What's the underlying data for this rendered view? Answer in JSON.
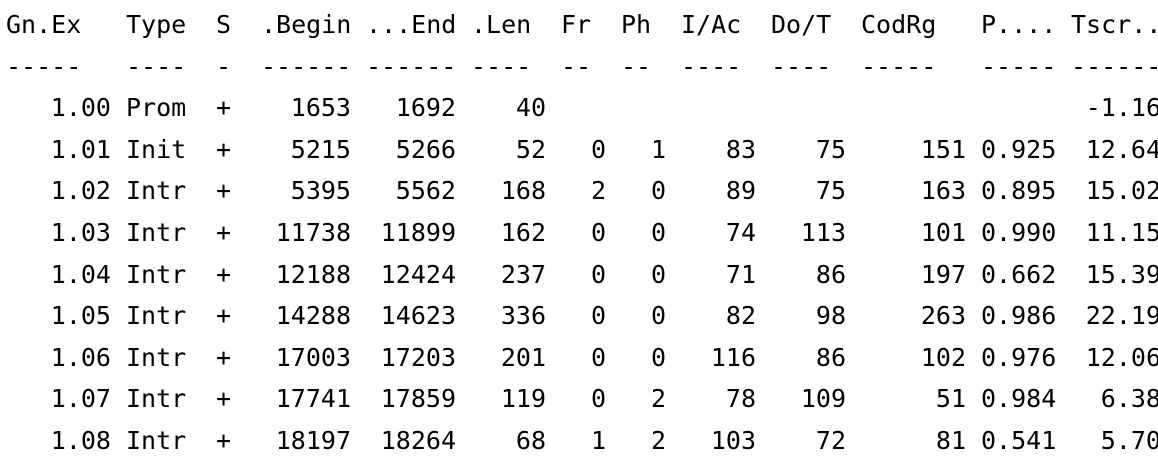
{
  "table": {
    "headers": [
      "Gn.Ex",
      "Type",
      "S",
      ".Begin",
      "...End",
      ".Len",
      "Fr",
      "Ph",
      "I/Ac",
      "Do/T",
      "CodRg",
      "P....",
      "Tscr.."
    ],
    "separators": [
      "-----",
      "----",
      "-",
      "------",
      "------",
      "----",
      "--",
      "--",
      "----",
      "----",
      "-----",
      "-----",
      "------"
    ],
    "rows": [
      [
        "1.00",
        "Prom",
        "+",
        "1653",
        "1692",
        "40",
        "",
        "",
        "",
        "",
        "",
        "",
        "-1.16"
      ],
      [
        "1.01",
        "Init",
        "+",
        "5215",
        "5266",
        "52",
        "0",
        "1",
        "83",
        "75",
        "151",
        "0.925",
        "12.64"
      ],
      [
        "1.02",
        "Intr",
        "+",
        "5395",
        "5562",
        "168",
        "2",
        "0",
        "89",
        "75",
        "163",
        "0.895",
        "15.02"
      ],
      [
        "1.03",
        "Intr",
        "+",
        "11738",
        "11899",
        "162",
        "0",
        "0",
        "74",
        "113",
        "101",
        "0.990",
        "11.15"
      ],
      [
        "1.04",
        "Intr",
        "+",
        "12188",
        "12424",
        "237",
        "0",
        "0",
        "71",
        "86",
        "197",
        "0.662",
        "15.39"
      ],
      [
        "1.05",
        "Intr",
        "+",
        "14288",
        "14623",
        "336",
        "0",
        "0",
        "82",
        "98",
        "263",
        "0.986",
        "22.19"
      ],
      [
        "1.06",
        "Intr",
        "+",
        "17003",
        "17203",
        "201",
        "0",
        "0",
        "116",
        "86",
        "102",
        "0.976",
        "12.06"
      ],
      [
        "1.07",
        "Intr",
        "+",
        "17741",
        "17859",
        "119",
        "0",
        "2",
        "78",
        "109",
        "51",
        "0.984",
        "6.38"
      ],
      [
        "1.08",
        "Intr",
        "+",
        "18197",
        "18264",
        "68",
        "1",
        "2",
        "103",
        "72",
        "81",
        "0.541",
        "5.70"
      ]
    ]
  }
}
